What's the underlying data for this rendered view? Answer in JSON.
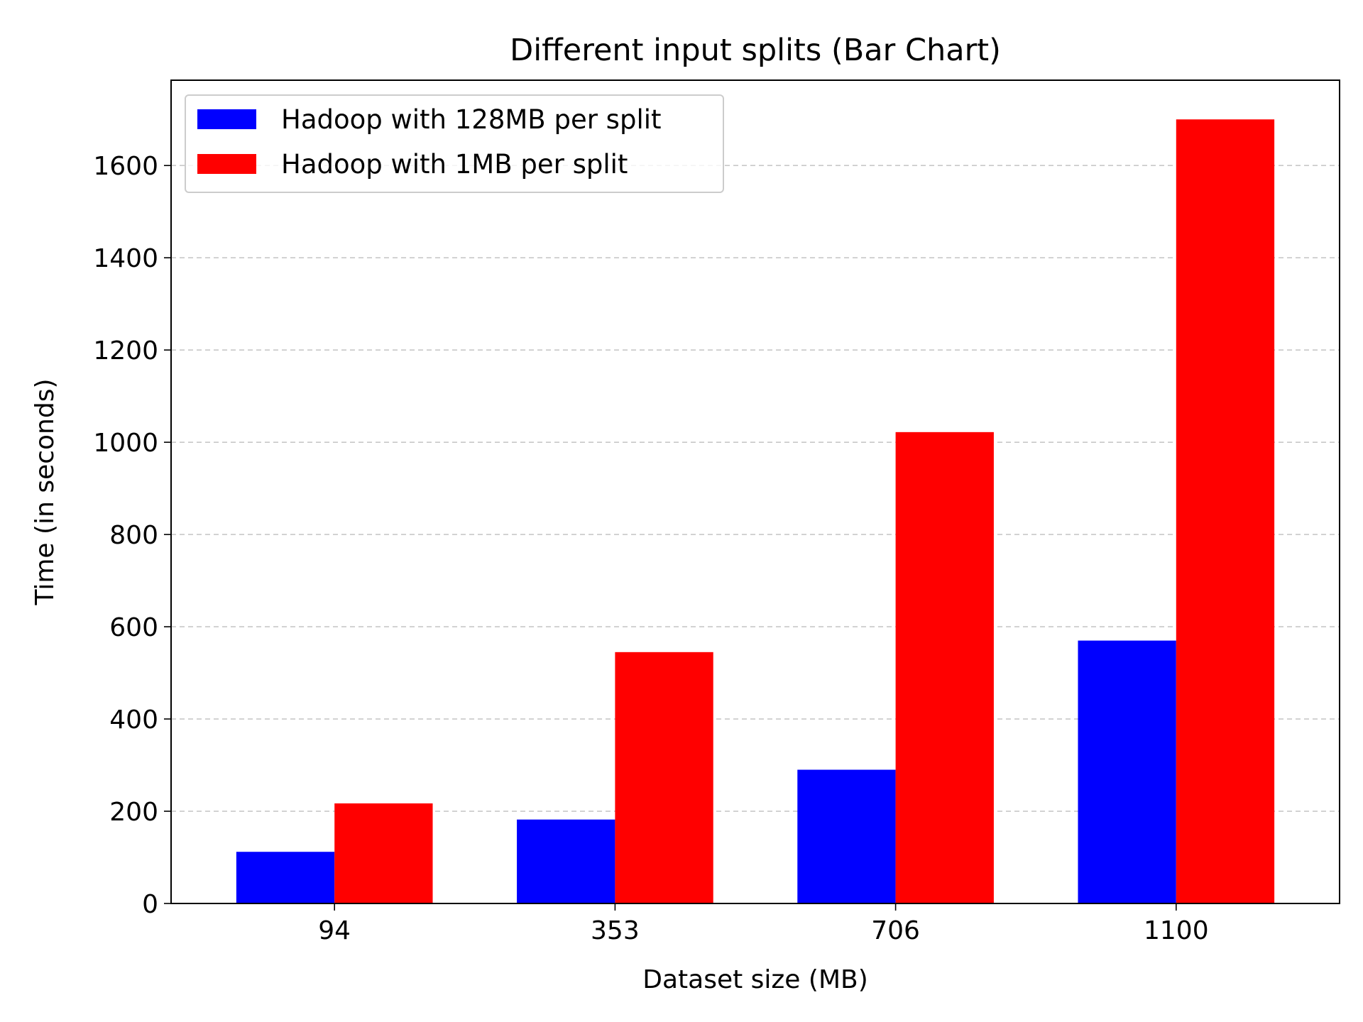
{
  "chart_data": {
    "type": "bar",
    "title": "Different input splits (Bar Chart)",
    "xlabel": "Dataset size (MB)",
    "ylabel": "Time (in seconds)",
    "categories": [
      "94",
      "353",
      "706",
      "1100"
    ],
    "series": [
      {
        "name": "Hadoop with 128MB per split",
        "color": "#0000ff",
        "values": [
          112,
          182,
          290,
          570
        ]
      },
      {
        "name": "Hadoop with 1MB per split",
        "color": "#ff0000",
        "values": [
          217,
          545,
          1022,
          1700
        ]
      }
    ],
    "ylim": [
      0,
      1785
    ],
    "yticks": [
      0,
      200,
      400,
      600,
      800,
      1000,
      1200,
      1400,
      1600
    ],
    "grid": "y-dashed",
    "legend_position": "top-left"
  }
}
